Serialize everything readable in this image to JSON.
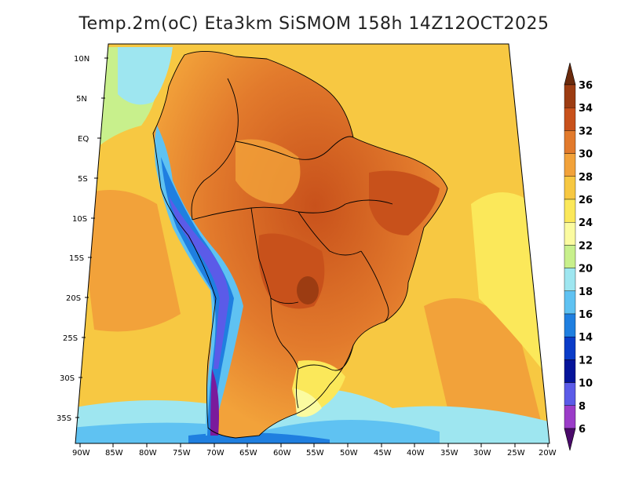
{
  "title": "Temp.2m(oC) Eta3km SiSMOM 158h 14Z12OCT2025",
  "lat_labels": [
    "10N",
    "5N",
    "EQ",
    "5S",
    "10S",
    "15S",
    "20S",
    "25S",
    "30S",
    "35S"
  ],
  "lon_labels": [
    "90W",
    "85W",
    "80W",
    "75W",
    "70W",
    "65W",
    "60W",
    "55W",
    "50W",
    "45W",
    "40W",
    "35W",
    "30W",
    "25W",
    "20W"
  ],
  "colorbar": {
    "labels": [
      "36",
      "34",
      "32",
      "30",
      "28",
      "26",
      "24",
      "22",
      "20",
      "18",
      "16",
      "14",
      "12",
      "10",
      "8",
      "6"
    ],
    "colors": [
      "#6b2a0c",
      "#9c3c12",
      "#c8511b",
      "#e27a2c",
      "#f2a23a",
      "#f7c842",
      "#fbe85a",
      "#fbfba0",
      "#c8f08c",
      "#9ee6f0",
      "#5fc2f2",
      "#1f7fe0",
      "#0a3cc8",
      "#05149a",
      "#5b5be8",
      "#9b3cc8",
      "#7a1a9c",
      "#4a0a6a"
    ],
    "min": 6,
    "max": 36,
    "step": 2
  },
  "colors": {
    "ocean_warm": "#f7c842",
    "ocean_hot": "#f2a23a",
    "ocean_mid": "#fbe85a",
    "ocean_cool": "#fbfba0",
    "land_hot": "#e27a2c",
    "land_hotter": "#c8511b",
    "andes_cold": "#1f7fe0",
    "andes_colder": "#05149a",
    "south_cold": "#5fc2f2",
    "south_coldest": "#1f7fe0",
    "border": "#000000"
  }
}
